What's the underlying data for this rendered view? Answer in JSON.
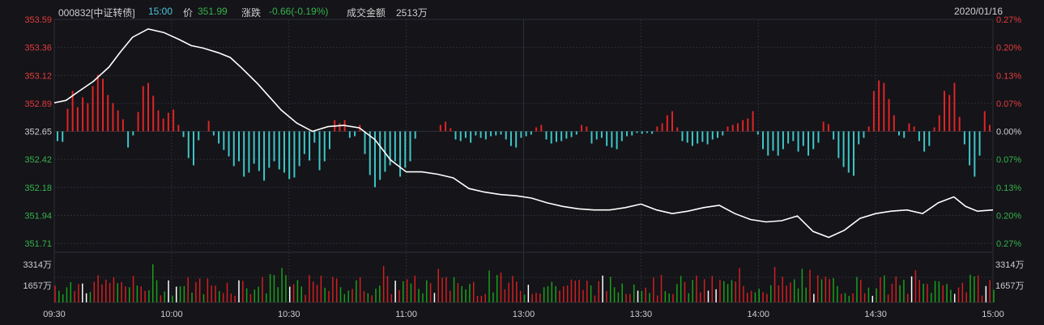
{
  "colors": {
    "background": "#141419",
    "price_line": "#ffffff",
    "up": "#e02424",
    "down": "#3fc6c6",
    "vol_up": "#d11f1f",
    "vol_down": "#19a019",
    "vol_neutral": "#ffffff",
    "grid": "#2c2f36",
    "axis_red": "#e33c3c",
    "axis_green": "#37b34a",
    "text": "#cfcfcf",
    "accent": "#4fc7d8"
  },
  "header": {
    "code": "000832[中证转债]",
    "time": "15:00",
    "price_label": "价",
    "price": "351.99",
    "change_label": "涨跌",
    "change": "-0.66(-0.19%)",
    "amount_label": "成交金额",
    "amount": "2513万",
    "date": "2020/01/16"
  },
  "chart_data": {
    "type": "line",
    "title": "",
    "prev_close": 352.65,
    "ylim": [
      351.71,
      353.59
    ],
    "left_ticks": [
      "353.59",
      "353.36",
      "353.12",
      "352.89",
      "352.65",
      "352.42",
      "352.18",
      "351.94",
      "351.71"
    ],
    "right_ticks": [
      "0.27%",
      "0.20%",
      "0.13%",
      "0.07%",
      "0.00%",
      "0.07%",
      "0.13%",
      "0.20%",
      "0.27%"
    ],
    "x_ticks": [
      "09:30",
      "10:00",
      "10:30",
      "11:00",
      "13:00",
      "13:30",
      "14:00",
      "14:30",
      "15:00"
    ],
    "price_series": {
      "time_index": [
        0,
        3,
        6,
        10,
        14,
        17,
        20,
        24,
        28,
        32,
        35,
        38,
        42,
        45,
        48,
        52,
        55,
        58,
        62,
        66,
        70,
        74,
        78,
        82,
        86,
        90,
        94,
        98,
        102,
        106,
        110,
        114,
        118,
        122,
        126,
        130,
        134,
        138,
        142,
        146,
        150,
        154,
        158,
        162,
        166,
        170,
        174,
        178,
        182,
        186,
        190,
        194,
        198,
        202,
        206,
        210,
        214,
        218,
        222,
        226,
        230,
        233,
        236,
        240
      ],
      "values": [
        352.89,
        352.91,
        352.98,
        353.07,
        353.19,
        353.32,
        353.44,
        353.51,
        353.48,
        353.42,
        353.37,
        353.35,
        353.31,
        353.27,
        353.18,
        353.05,
        352.94,
        352.83,
        352.72,
        352.65,
        352.69,
        352.7,
        352.68,
        352.58,
        352.41,
        352.31,
        352.31,
        352.29,
        352.26,
        352.17,
        352.14,
        352.12,
        352.11,
        352.09,
        352.05,
        352.02,
        352.0,
        351.99,
        351.99,
        352.01,
        352.04,
        351.99,
        351.96,
        351.98,
        352.01,
        352.03,
        351.96,
        351.91,
        351.89,
        351.9,
        351.94,
        351.81,
        351.76,
        351.82,
        351.92,
        351.96,
        351.98,
        351.99,
        351.96,
        352.05,
        352.1,
        352.02,
        351.98,
        351.99
      ]
    },
    "momentum_bars": [
      -12,
      -13,
      28,
      50,
      30,
      42,
      35,
      56,
      70,
      65,
      45,
      35,
      26,
      15,
      -20,
      -5,
      24,
      56,
      60,
      44,
      26,
      16,
      23,
      27,
      8,
      -7,
      -33,
      -42,
      -11,
      0,
      13,
      -5,
      -15,
      -23,
      -31,
      -43,
      -37,
      -56,
      -51,
      -40,
      -49,
      -61,
      -45,
      -37,
      -47,
      -51,
      -59,
      -57,
      -43,
      -28,
      -36,
      -14,
      -48,
      -37,
      -22,
      14,
      10,
      14,
      -8,
      -6,
      8,
      -28,
      -54,
      -69,
      -60,
      -50,
      -42,
      -37,
      -56,
      -45,
      -37,
      -9,
      0,
      0,
      0,
      0,
      8,
      12,
      4,
      -10,
      -12,
      -8,
      -14,
      -5,
      -8,
      -10,
      -6,
      -5,
      -4,
      -10,
      -18,
      -20,
      -8,
      -6,
      -4,
      5,
      8,
      -10,
      -15,
      -13,
      -12,
      -9,
      -7,
      -4,
      8,
      6,
      -15,
      -10,
      -8,
      -18,
      -20,
      -22,
      -12,
      -6,
      -5,
      -2,
      -3,
      -2,
      -3,
      6,
      10,
      20,
      25,
      5,
      -12,
      -14,
      -18,
      -15,
      -13,
      -16,
      -10,
      -8,
      -5,
      6,
      8,
      10,
      14,
      16,
      25,
      -4,
      -22,
      -30,
      -24,
      -30,
      -22,
      -15,
      -12,
      -25,
      -18,
      -30,
      -22,
      -14,
      12,
      9,
      -10,
      -33,
      -44,
      -51,
      -55,
      -16,
      -8,
      6,
      50,
      63,
      60,
      40,
      20,
      -5,
      -8,
      10,
      6,
      -12,
      -25,
      -18,
      5,
      20,
      50,
      45,
      60,
      18,
      -16,
      -42,
      -56,
      -30,
      25,
      8
    ]
  },
  "volume": {
    "labels": [
      "3314万",
      "1657万"
    ]
  }
}
